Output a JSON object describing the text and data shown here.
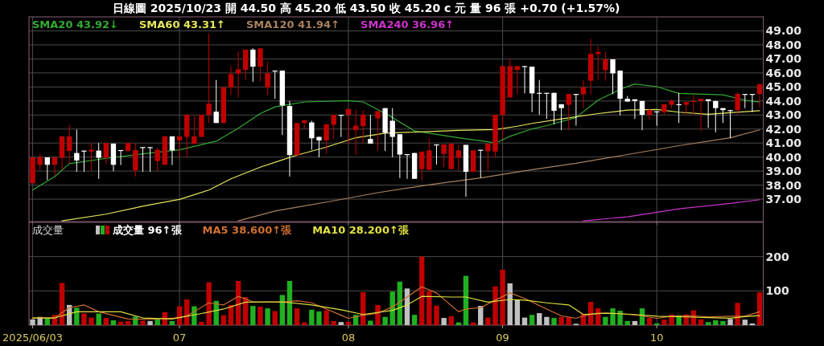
{
  "chart_data": [
    {
      "type": "candlestick",
      "title": "日線圖 2025/10/23 開 44.50 高 45.20 低 43.50 收 45.20 c 元 量 96 張 +0.70 (+1.57%)",
      "categories": [
        "2025/06/03",
        null,
        null,
        null,
        null,
        null,
        null,
        null,
        null,
        null,
        null,
        null,
        null,
        null,
        null,
        null,
        null,
        null,
        null,
        null,
        "07",
        null,
        null,
        null,
        null,
        null,
        null,
        null,
        null,
        null,
        null,
        null,
        null,
        null,
        null,
        null,
        null,
        null,
        null,
        null,
        null,
        null,
        null,
        "08",
        null,
        null,
        null,
        null,
        null,
        null,
        null,
        null,
        null,
        null,
        null,
        null,
        null,
        null,
        null,
        null,
        null,
        null,
        null,
        null,
        "09",
        null,
        null,
        null,
        null,
        null,
        null,
        null,
        null,
        null,
        null,
        null,
        null,
        null,
        null,
        null,
        null,
        null,
        null,
        null,
        null,
        "10",
        null,
        null,
        null,
        null,
        null,
        null,
        null,
        null,
        null,
        null,
        null,
        null,
        null,
        null
      ],
      "ohlc": [
        [
          38.13,
          39.98,
          38.13,
          39.98
        ],
        [
          39.45,
          40.23,
          39.03,
          39.98
        ],
        [
          39.98,
          39.98,
          38.36,
          39.45
        ],
        [
          39.45,
          39.98,
          38.7,
          39.98
        ],
        [
          39.95,
          41.48,
          39.09,
          41.48
        ],
        [
          40.43,
          42.3,
          39.56,
          41.48
        ],
        [
          40.29,
          41.96,
          38.95,
          39.76
        ],
        [
          40.46,
          40.46,
          38.95,
          40.39
        ],
        [
          40.39,
          41.0,
          39.03,
          40.52
        ],
        [
          40.46,
          41.0,
          38.45,
          39.95
        ],
        [
          39.95,
          41.0,
          39.47,
          41.0
        ],
        [
          40.96,
          40.96,
          38.99,
          39.45
        ],
        [
          40.5,
          40.5,
          39.43,
          40.46
        ],
        [
          40.43,
          41.0,
          40.43,
          41.0
        ],
        [
          39.05,
          41.0,
          38.61,
          40.5
        ],
        [
          40.71,
          40.71,
          38.95,
          40.67
        ],
        [
          40.71,
          40.71,
          38.95,
          40.67
        ],
        [
          39.72,
          40.67,
          38.99,
          40.52
        ],
        [
          39.45,
          41.48,
          39.45,
          41.48
        ],
        [
          41.48,
          41.48,
          39.43,
          40.48
        ],
        [
          41.19,
          41.48,
          39.98,
          41.48
        ],
        [
          41.44,
          43.1,
          39.98,
          43.01
        ],
        [
          40.94,
          42.97,
          40.94,
          41.48
        ],
        [
          41.44,
          43.01,
          41.44,
          43.01
        ],
        [
          43.01,
          48.83,
          42.43,
          43.81
        ],
        [
          43.24,
          45.5,
          42.43,
          42.43
        ],
        [
          42.43,
          44.98,
          42.43,
          44.98
        ],
        [
          44.96,
          46.49,
          44.44,
          45.92
        ],
        [
          45.95,
          47.5,
          44.25,
          46.26
        ],
        [
          46.22,
          47.66,
          45.5,
          47.66
        ],
        [
          47.66,
          47.75,
          45.36,
          46.45
        ],
        [
          46.45,
          47.75,
          45.4,
          47.75
        ],
        [
          44.96,
          46.8,
          44.44,
          45.97
        ],
        [
          46.17,
          46.17,
          44.16,
          46.13
        ],
        [
          46.17,
          46.17,
          41.57,
          43.68
        ],
        [
          43.64,
          44.0,
          38.61,
          40.14
        ],
        [
          40.14,
          42.43,
          40.14,
          42.43
        ],
        [
          42.43,
          42.63,
          42.01,
          42.63
        ],
        [
          42.47,
          42.59,
          40.52,
          41.34
        ],
        [
          41.44,
          41.44,
          39.98,
          41.19
        ],
        [
          41.19,
          42.34,
          40.23,
          42.34
        ],
        [
          42.3,
          43.01,
          41.29,
          43.01
        ],
        [
          43.01,
          43.01,
          41.44,
          42.97
        ],
        [
          43.01,
          43.43,
          40.94,
          43.43
        ],
        [
          41.92,
          43.39,
          40.14,
          42.24
        ],
        [
          42.2,
          43.35,
          41.0,
          43.01
        ],
        [
          41.29,
          43.01,
          40.96,
          40.96
        ],
        [
          42.76,
          43.28,
          40.46,
          43.28
        ],
        [
          43.49,
          43.49,
          40.43,
          41.73
        ],
        [
          42.59,
          43.49,
          39.98,
          41.44
        ],
        [
          41.63,
          41.63,
          38.51,
          40.18
        ],
        [
          40.21,
          40.21,
          38.45,
          40.18
        ],
        [
          40.29,
          40.29,
          38.45,
          38.45
        ],
        [
          39.14,
          40.39,
          38.32,
          40.39
        ],
        [
          39.09,
          41.32,
          39.09,
          40.48
        ],
        [
          40.9,
          40.9,
          39.47,
          40.87
        ],
        [
          40.23,
          40.9,
          39.28,
          40.9
        ],
        [
          39.14,
          40.96,
          39.14,
          40.96
        ],
        [
          39.95,
          40.9,
          38.99,
          40.48
        ],
        [
          40.87,
          40.87,
          37.17,
          38.95
        ],
        [
          38.95,
          40.48,
          38.95,
          40.48
        ],
        [
          40.52,
          40.52,
          38.51,
          40.48
        ],
        [
          40.43,
          40.96,
          38.99,
          40.96
        ],
        [
          40.39,
          43.01,
          39.98,
          43.01
        ],
        [
          43.01,
          46.49,
          41.29,
          46.49
        ],
        [
          44.25,
          47.03,
          44.25,
          46.49
        ],
        [
          46.22,
          46.49,
          44.5,
          46.49
        ],
        [
          46.49,
          46.49,
          44.54,
          46.45
        ],
        [
          46.45,
          46.45,
          43.2,
          44.54
        ],
        [
          44.58,
          45.5,
          43.01,
          44.54
        ],
        [
          44.58,
          44.58,
          42.72,
          44.54
        ],
        [
          44.58,
          44.58,
          42.34,
          43.3
        ],
        [
          43.77,
          43.77,
          41.92,
          43.49
        ],
        [
          43.73,
          44.5,
          41.92,
          44.5
        ],
        [
          44.5,
          44.5,
          42.24,
          44.46
        ],
        [
          44.48,
          45.5,
          43.49,
          44.98
        ],
        [
          45.44,
          48.4,
          44.44,
          47.35
        ],
        [
          47.35,
          47.89,
          45.5,
          47.5
        ],
        [
          46.2,
          47.5,
          45.44,
          46.97
        ],
        [
          46.97,
          46.97,
          44.48,
          45.97
        ],
        [
          46.17,
          46.17,
          42.97,
          44.16
        ],
        [
          44.16,
          44.35,
          43.96,
          43.96
        ],
        [
          44.12,
          44.12,
          42.72,
          44.0
        ],
        [
          44.0,
          44.0,
          41.92,
          43.01
        ],
        [
          43.01,
          43.43,
          42.66,
          43.35
        ],
        [
          43.26,
          43.26,
          42.24,
          43.2
        ],
        [
          43.2,
          43.77,
          43.05,
          43.77
        ],
        [
          43.73,
          44.12,
          43.49,
          44.0
        ],
        [
          43.77,
          44.58,
          42.43,
          43.73
        ],
        [
          43.73,
          43.93,
          43.05,
          43.93
        ],
        [
          43.93,
          44.44,
          43.05,
          44.0
        ],
        [
          44.0,
          44.16,
          41.86,
          44.16
        ],
        [
          44.12,
          44.12,
          42.09,
          44.0
        ],
        [
          44.0,
          44.0,
          41.76,
          43.49
        ],
        [
          43.49,
          43.49,
          42.43,
          43.35
        ],
        [
          43.35,
          43.35,
          41.34,
          43.3
        ],
        [
          43.35,
          44.63,
          43.05,
          44.5
        ],
        [
          44.5,
          44.5,
          43.49,
          44.46
        ],
        [
          44.5,
          44.5,
          43.2,
          44.46
        ],
        [
          44.5,
          45.2,
          43.5,
          45.2
        ]
      ],
      "colors": [
        "#c00000",
        "#c00000",
        "#ffffff",
        "#c00000",
        "#c00000",
        "#c00000",
        "#ffffff",
        "#ffffff",
        "#c00000",
        "#ffffff",
        "#c00000",
        "#ffffff",
        "#ffffff",
        "#c00000",
        "#c00000",
        "#ffffff",
        "#ffffff",
        "#c00000",
        "#c00000",
        "#ffffff",
        "#c00000",
        "#c00000",
        "#c00000",
        "#c00000",
        "#c00000",
        "#ffffff",
        "#c00000",
        "#c00000",
        "#c00000",
        "#c00000",
        "#ffffff",
        "#c00000",
        "#c00000",
        "#ffffff",
        "#ffffff",
        "#ffffff",
        "#c00000",
        "#c00000",
        "#ffffff",
        "#ffffff",
        "#c00000",
        "#c00000",
        "#ffffff",
        "#c00000",
        "#c00000",
        "#c00000",
        "#ffffff",
        "#c00000",
        "#ffffff",
        "#ffffff",
        "#ffffff",
        "#ffffff",
        "#ffffff",
        "#c00000",
        "#c00000",
        "#ffffff",
        "#c00000",
        "#c00000",
        "#c00000",
        "#ffffff",
        "#c00000",
        "#ffffff",
        "#c00000",
        "#c00000",
        "#c00000",
        "#c00000",
        "#c00000",
        "#ffffff",
        "#ffffff",
        "#ffffff",
        "#ffffff",
        "#ffffff",
        "#ffffff",
        "#c00000",
        "#ffffff",
        "#c00000",
        "#c00000",
        "#c00000",
        "#c00000",
        "#ffffff",
        "#ffffff",
        "#ffffff",
        "#ffffff",
        "#ffffff",
        "#c00000",
        "#ffffff",
        "#c00000",
        "#c00000",
        "#ffffff",
        "#c00000",
        "#c00000",
        "#c00000",
        "#ffffff",
        "#ffffff",
        "#ffffff",
        "#ffffff",
        "#c00000",
        "#ffffff",
        "#ffffff",
        "#c00000"
      ],
      "series": [
        {
          "name": "SMA20 43.92↓",
          "type": "line",
          "color": "#33aa33",
          "values": [
            37.65,
            null,
            null,
            38.61,
            null,
            39.53,
            null,
            null,
            null,
            null,
            39.91,
            null,
            null,
            null,
            null,
            40.23,
            null,
            null,
            null,
            null,
            40.52,
            null,
            null,
            null,
            null,
            41.13,
            null,
            null,
            42.05,
            null,
            null,
            43.1,
            null,
            43.58,
            null,
            null,
            null,
            43.93,
            null,
            null,
            null,
            null,
            null,
            44.02,
            null,
            43.93,
            null,
            43.39,
            null,
            42.82,
            null,
            null,
            41.86,
            null,
            null,
            null,
            null,
            null,
            41.38,
            null,
            null,
            null,
            41.09,
            41.0,
            null,
            41.48,
            null,
            null,
            42.01,
            null,
            42.24,
            null,
            null,
            null,
            42.82,
            null,
            null,
            44.06,
            null,
            null,
            44.83,
            null,
            45.21,
            null,
            null,
            45.02,
            null,
            null,
            44.54,
            null,
            null,
            null,
            null,
            null,
            44.44,
            null,
            null,
            44.06,
            null,
            43.92
          ]
        },
        {
          "name": "SMA60 43.31↑",
          "type": "line",
          "color": "#e6e65c",
          "values": [
            null,
            null,
            null,
            null,
            35.45,
            null,
            null,
            null,
            null,
            null,
            35.93,
            null,
            null,
            null,
            null,
            36.5,
            null,
            null,
            null,
            null,
            36.98,
            null,
            null,
            null,
            37.65,
            null,
            null,
            38.45,
            null,
            null,
            null,
            39.28,
            null,
            null,
            39.8,
            null,
            40.14,
            null,
            null,
            null,
            40.71,
            null,
            null,
            null,
            41.38,
            null,
            null,
            null,
            41.71,
            null,
            null,
            null,
            null,
            null,
            41.82,
            null,
            null,
            null,
            41.9,
            null,
            null,
            null,
            null,
            41.96,
            null,
            null,
            42.2,
            null,
            42.4,
            null,
            null,
            null,
            42.72,
            null,
            null,
            null,
            null,
            43.1,
            null,
            null,
            null,
            43.35,
            null,
            null,
            null,
            43.39,
            null,
            null,
            43.2,
            null,
            null,
            null,
            43.05,
            null,
            null,
            43.16,
            null,
            null,
            null,
            43.31
          ]
        },
        {
          "name": "SMA120 41.94↑",
          "type": "line",
          "color": "#a88060",
          "values": [
            null,
            null,
            null,
            null,
            null,
            null,
            null,
            null,
            null,
            null,
            null,
            null,
            null,
            null,
            null,
            null,
            null,
            null,
            null,
            null,
            null,
            null,
            null,
            null,
            null,
            null,
            null,
            null,
            35.45,
            null,
            null,
            null,
            null,
            36.15,
            null,
            null,
            null,
            null,
            null,
            null,
            36.79,
            null,
            null,
            null,
            null,
            null,
            null,
            37.46,
            null,
            null,
            null,
            null,
            null,
            null,
            38.03,
            null,
            null,
            null,
            null,
            null,
            null,
            38.51,
            null,
            null,
            null,
            null,
            null,
            null,
            39.1,
            null,
            null,
            null,
            null,
            null,
            39.56,
            null,
            null,
            null,
            null,
            null,
            null,
            40.18,
            null,
            null,
            null,
            null,
            null,
            null,
            40.81,
            null,
            null,
            null,
            null,
            null,
            null,
            41.38,
            null,
            null,
            null,
            41.94
          ]
        },
        {
          "name": "SMA240 36.96↑",
          "type": "line",
          "color": "#cc33cc",
          "values": [
            null,
            null,
            null,
            null,
            null,
            null,
            null,
            null,
            null,
            null,
            null,
            null,
            null,
            null,
            null,
            null,
            null,
            null,
            null,
            null,
            null,
            null,
            null,
            null,
            null,
            null,
            null,
            null,
            null,
            null,
            null,
            null,
            null,
            null,
            null,
            null,
            null,
            null,
            null,
            null,
            null,
            null,
            null,
            null,
            null,
            null,
            null,
            null,
            null,
            null,
            null,
            null,
            null,
            null,
            null,
            null,
            null,
            null,
            null,
            null,
            null,
            null,
            null,
            null,
            null,
            null,
            null,
            null,
            null,
            null,
            null,
            null,
            null,
            null,
            null,
            35.45,
            null,
            null,
            null,
            null,
            null,
            35.74,
            null,
            null,
            null,
            null,
            null,
            null,
            36.31,
            null,
            null,
            null,
            null,
            null,
            null,
            36.69,
            null,
            null,
            null,
            36.96
          ]
        }
      ],
      "ylim": [
        35.4,
        50.0
      ],
      "yticks": [
        {
          "value": 37,
          "label": "37.00"
        },
        {
          "value": 38,
          "label": "38.00"
        },
        {
          "value": 39,
          "label": "39.00"
        },
        {
          "value": 40,
          "label": "40.00"
        },
        {
          "value": 41,
          "label": "41.00"
        },
        {
          "value": 42,
          "label": "42.00"
        },
        {
          "value": 43,
          "label": "43.00"
        },
        {
          "value": 44,
          "label": "44.00"
        },
        {
          "value": 45,
          "label": "45.00"
        },
        {
          "value": 46,
          "label": "46.00"
        },
        {
          "value": 47,
          "label": "47.00"
        },
        {
          "value": 48,
          "label": "48.00"
        },
        {
          "value": 49,
          "label": "49.00"
        }
      ],
      "grid": true,
      "legend": "top left",
      "tick_labels": "y"
    },
    {
      "type": "bar",
      "title": "成交量",
      "categories": [
        "2025/06/03",
        null,
        null,
        null,
        null,
        null,
        null,
        null,
        null,
        null,
        null,
        null,
        null,
        null,
        null,
        null,
        null,
        null,
        null,
        null,
        "07",
        null,
        null,
        null,
        null,
        null,
        null,
        null,
        null,
        null,
        null,
        null,
        null,
        null,
        null,
        null,
        null,
        null,
        null,
        null,
        null,
        null,
        null,
        "08",
        null,
        null,
        null,
        null,
        null,
        null,
        null,
        null,
        null,
        null,
        null,
        null,
        null,
        null,
        null,
        null,
        null,
        null,
        null,
        null,
        "09",
        null,
        null,
        null,
        null,
        null,
        null,
        null,
        null,
        null,
        null,
        null,
        null,
        null,
        null,
        null,
        null,
        null,
        null,
        null,
        null,
        "10",
        null,
        null,
        null,
        null,
        null,
        null,
        null,
        null,
        null,
        null,
        null,
        null,
        null,
        null
      ],
      "series": [
        {
          "name": "成交量 96↑張",
          "type": "bar",
          "colors": [
            "#c0c0c0",
            "#c0c0c0",
            "#20b020",
            "#c00000",
            "#c00000",
            "#c0c0c0",
            "#20b020",
            "#c00000",
            "#c00000",
            "#20b020",
            "#c00000",
            "#20b020",
            "#c00000",
            "#c00000",
            "#20b020",
            "#c00000",
            "#c0c0c0",
            "#20b020",
            "#c00000",
            "#20b020",
            "#c00000",
            "#c00000",
            "#20b020",
            "#c00000",
            "#c00000",
            "#20b020",
            "#c00000",
            "#c00000",
            "#c00000",
            "#c00000",
            "#20b020",
            "#c00000",
            "#20b020",
            "#c00000",
            "#20b020",
            "#20b020",
            "#c00000",
            "#c00000",
            "#20b020",
            "#20b020",
            "#c00000",
            "#c00000",
            "#c0c0c0",
            "#c00000",
            "#20b020",
            "#c00000",
            "#20b020",
            "#c00000",
            "#20b020",
            "#20b020",
            "#20b020",
            "#c0c0c0",
            "#20b020",
            "#c00000",
            "#c00000",
            "#c00000",
            "#c0c0c0",
            "#c00000",
            "#20b020",
            "#20b020",
            "#c00000",
            "#c0c0c0",
            "#c00000",
            "#c00000",
            "#c00000",
            "#c0c0c0",
            "#c0c0c0",
            "#c0c0c0",
            "#20b020",
            "#c0c0c0",
            "#c0c0c0",
            "#20b020",
            "#c00000",
            "#c00000",
            "#c0c0c0",
            "#c00000",
            "#c00000",
            "#c00000",
            "#20b020",
            "#20b020",
            "#20b020",
            "#20b020",
            "#c0c0c0",
            "#20b020",
            "#c00000",
            "#20b020",
            "#c00000",
            "#c00000",
            "#20b020",
            "#c00000",
            "#c00000",
            "#c00000",
            "#20b020",
            "#20b020",
            "#20b020",
            "#c0c0c0",
            "#c00000",
            "#c0c0c0",
            "#c0c0c0",
            "#c00000"
          ],
          "values": [
            17,
            24,
            21,
            30,
            123,
            59,
            51,
            34,
            22,
            34,
            21,
            14,
            10,
            12,
            25,
            13,
            12,
            17,
            38,
            12,
            55,
            75,
            55,
            10,
            125,
            71,
            29,
            59,
            129,
            82,
            56,
            54,
            49,
            41,
            88,
            129,
            49,
            8,
            45,
            40,
            43,
            12,
            9,
            10,
            30,
            96,
            13,
            59,
            24,
            98,
            127,
            107,
            30,
            200,
            100,
            57,
            21,
            26,
            8,
            144,
            8,
            56,
            22,
            113,
            162,
            122,
            75,
            22,
            30,
            35,
            24,
            21,
            24,
            24,
            4,
            33,
            68,
            49,
            24,
            49,
            42,
            12,
            12,
            49,
            21,
            5,
            16,
            31,
            29,
            31,
            43,
            17,
            9,
            14,
            12,
            18,
            65,
            16,
            5,
            96
          ]
        },
        {
          "name": "MA5 38.600↑張",
          "type": "line",
          "color": "#d07030",
          "values": [
            21,
            null,
            null,
            21,
            null,
            51,
            null,
            59,
            null,
            39,
            null,
            null,
            null,
            18,
            null,
            null,
            17,
            null,
            null,
            20,
            null,
            27,
            null,
            null,
            65,
            null,
            59,
            null,
            84,
            null,
            68,
            null,
            68,
            null,
            67,
            null,
            71,
            null,
            65,
            null,
            47,
            null,
            29,
            20,
            null,
            29,
            null,
            35,
            null,
            53,
            null,
            82,
            null,
            112,
            null,
            94,
            null,
            null,
            39,
            47,
            null,
            51,
            null,
            73,
            null,
            94,
            null,
            78,
            null,
            null,
            47,
            null,
            27,
            null,
            20,
            27,
            null,
            35,
            null,
            null,
            34,
            null,
            null,
            27,
            null,
            20,
            null,
            26,
            null,
            null,
            27,
            null,
            24,
            null,
            null,
            26,
            null,
            26,
            null,
            39
          ]
        },
        {
          "name": "MA10 28.200↑張",
          "type": "line",
          "color": "#e0e040",
          "values": [
            21,
            null,
            null,
            21,
            null,
            null,
            39,
            null,
            null,
            null,
            null,
            null,
            39,
            null,
            null,
            21,
            null,
            null,
            null,
            18,
            null,
            null,
            null,
            34,
            null,
            null,
            47,
            null,
            null,
            67,
            null,
            null,
            null,
            null,
            68,
            null,
            null,
            null,
            59,
            null,
            null,
            null,
            45,
            null,
            null,
            31,
            null,
            null,
            null,
            43,
            null,
            59,
            null,
            84,
            null,
            null,
            null,
            82,
            null,
            82,
            null,
            null,
            67,
            null,
            null,
            75,
            null,
            73,
            null,
            null,
            65,
            null,
            null,
            59,
            null,
            31,
            null,
            null,
            35,
            null,
            null,
            null,
            31,
            null,
            null,
            26,
            null,
            null,
            null,
            24,
            null,
            null,
            22,
            null,
            null,
            20,
            null,
            25,
            null,
            28
          ]
        }
      ],
      "ylim": [
        0,
        300
      ],
      "yticks": [
        100,
        200
      ],
      "grid": true,
      "legend": "top left"
    }
  ]
}
